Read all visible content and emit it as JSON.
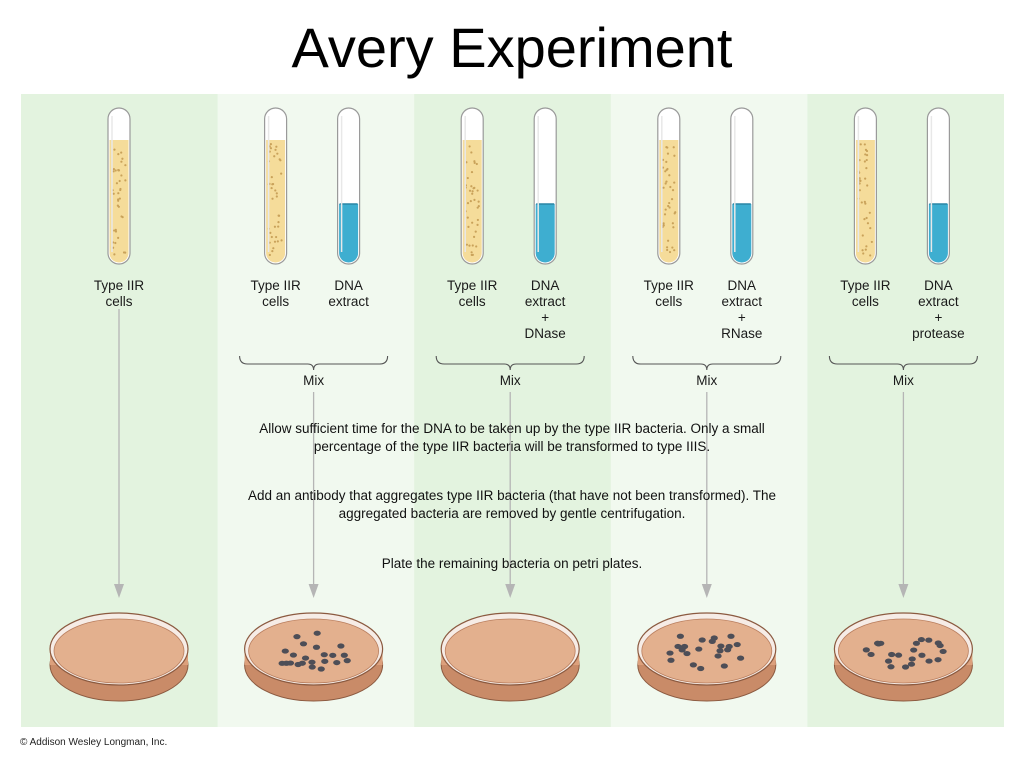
{
  "title": "Avery Experiment",
  "columns": [
    {
      "type_label": "Type IIR\ncells",
      "extract_label": "",
      "plate": "none"
    },
    {
      "type_label": "Type IIR\ncells",
      "extract_label": "DNA\nextract",
      "plate": "colonies"
    },
    {
      "type_label": "Type IIR\ncells",
      "extract_label": "DNA\nextract\n+\nDNase",
      "plate": "none"
    },
    {
      "type_label": "Type IIR\ncells",
      "extract_label": "DNA\nextract\n+\nRNase",
      "plate": "colonies"
    },
    {
      "type_label": "Type IIR\ncells",
      "extract_label": "DNA\nextract\n+\nprotease",
      "plate": "colonies"
    }
  ],
  "mix_label": "Mix",
  "steps": {
    "step1": [
      "Allow sufficient time for the DNA to be taken up by the type IIR bacteria. Only a small",
      "percentage of the type IIR bacteria will be transformed to type IIIS."
    ],
    "step2": [
      "Add an antibody that aggregates type IIR bacteria (that have not been transformed). The",
      "aggregated bacteria are removed by gentle centrifugation."
    ],
    "step3": [
      "Plate the remaining bacteria on petri plates."
    ]
  },
  "copyright": "© Addison Wesley Longman, Inc.",
  "colors": {
    "panel_green": "#e3f3df",
    "panel_light": "#f1f9ef",
    "cells_fill": "#f5dc9a",
    "dna_fill": "#3eaed0",
    "agar": "#e3b08e",
    "dish_rim": "#c98b68",
    "colony": "#4d4e57",
    "arrow": "#b5b5b5"
  }
}
